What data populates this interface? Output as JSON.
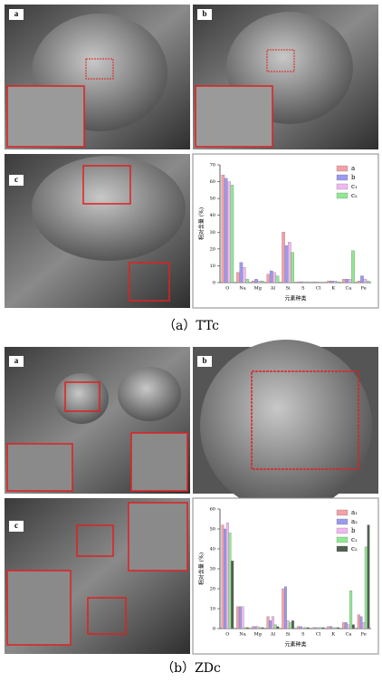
{
  "image_labels": [
    [
      "a",
      "b",
      "c"
    ],
    [
      "a",
      "b",
      "c"
    ]
  ],
  "captions": [
    "（a）TTc",
    "（b）ZDc"
  ],
  "chart_data": [
    {
      "type": "bar",
      "ylabel": "相对含量 (%)",
      "xlabel": "元素种类",
      "categories": [
        "O",
        "Na",
        "Mg",
        "Al",
        "Si",
        "S",
        "Cl",
        "K",
        "Ca",
        "Fe"
      ],
      "series": [
        {
          "name": "a",
          "color": "#f4a0a8",
          "values": [
            64,
            6,
            1,
            5,
            30,
            0.5,
            0.5,
            1,
            2,
            1
          ]
        },
        {
          "name": "b",
          "color": "#9a9af0",
          "values": [
            62,
            12,
            2,
            7,
            22,
            0.5,
            0.3,
            1,
            2,
            4
          ]
        },
        {
          "name": "c₁",
          "color": "#f0b8f0",
          "values": [
            60,
            9,
            1,
            6,
            24,
            0.5,
            0.3,
            1,
            2,
            2
          ]
        },
        {
          "name": "c₂",
          "color": "#90e890",
          "values": [
            58,
            2,
            1,
            4,
            18,
            0.5,
            0.3,
            0.5,
            19,
            1
          ]
        }
      ],
      "ylim": [
        0,
        70
      ],
      "yticks": [
        0,
        10,
        20,
        30,
        40,
        50,
        60,
        70
      ],
      "legend": "upper right"
    },
    {
      "type": "bar",
      "ylabel": "相对含量 (%)",
      "xlabel": "元素种类",
      "categories": [
        "O",
        "Na",
        "Mg",
        "Al",
        "Si",
        "S",
        "Cl",
        "K",
        "Ca",
        "Fe"
      ],
      "series": [
        {
          "name": "a₁",
          "color": "#f4a0a8",
          "values": [
            52,
            11,
            1,
            6,
            20,
            1,
            0.5,
            1,
            3,
            7
          ]
        },
        {
          "name": "a₂",
          "color": "#9a9af0",
          "values": [
            50,
            11,
            1,
            4,
            21,
            1,
            0.5,
            1,
            3,
            6
          ]
        },
        {
          "name": "b",
          "color": "#f0b8f0",
          "values": [
            53,
            11,
            1,
            6,
            4,
            0.5,
            0.5,
            0.5,
            2,
            3
          ]
        },
        {
          "name": "c₁",
          "color": "#90e890",
          "values": [
            48,
            0.5,
            0.5,
            2,
            3,
            0.5,
            0.5,
            0.5,
            19,
            41
          ]
        },
        {
          "name": "c₂",
          "color": "#506050",
          "values": [
            34,
            0.5,
            0.5,
            1,
            4,
            0.5,
            0.5,
            0.5,
            2,
            52
          ]
        }
      ],
      "ylim": [
        0,
        60
      ],
      "yticks": [
        0,
        10,
        20,
        30,
        40,
        50,
        60
      ],
      "legend": "upper right"
    }
  ]
}
